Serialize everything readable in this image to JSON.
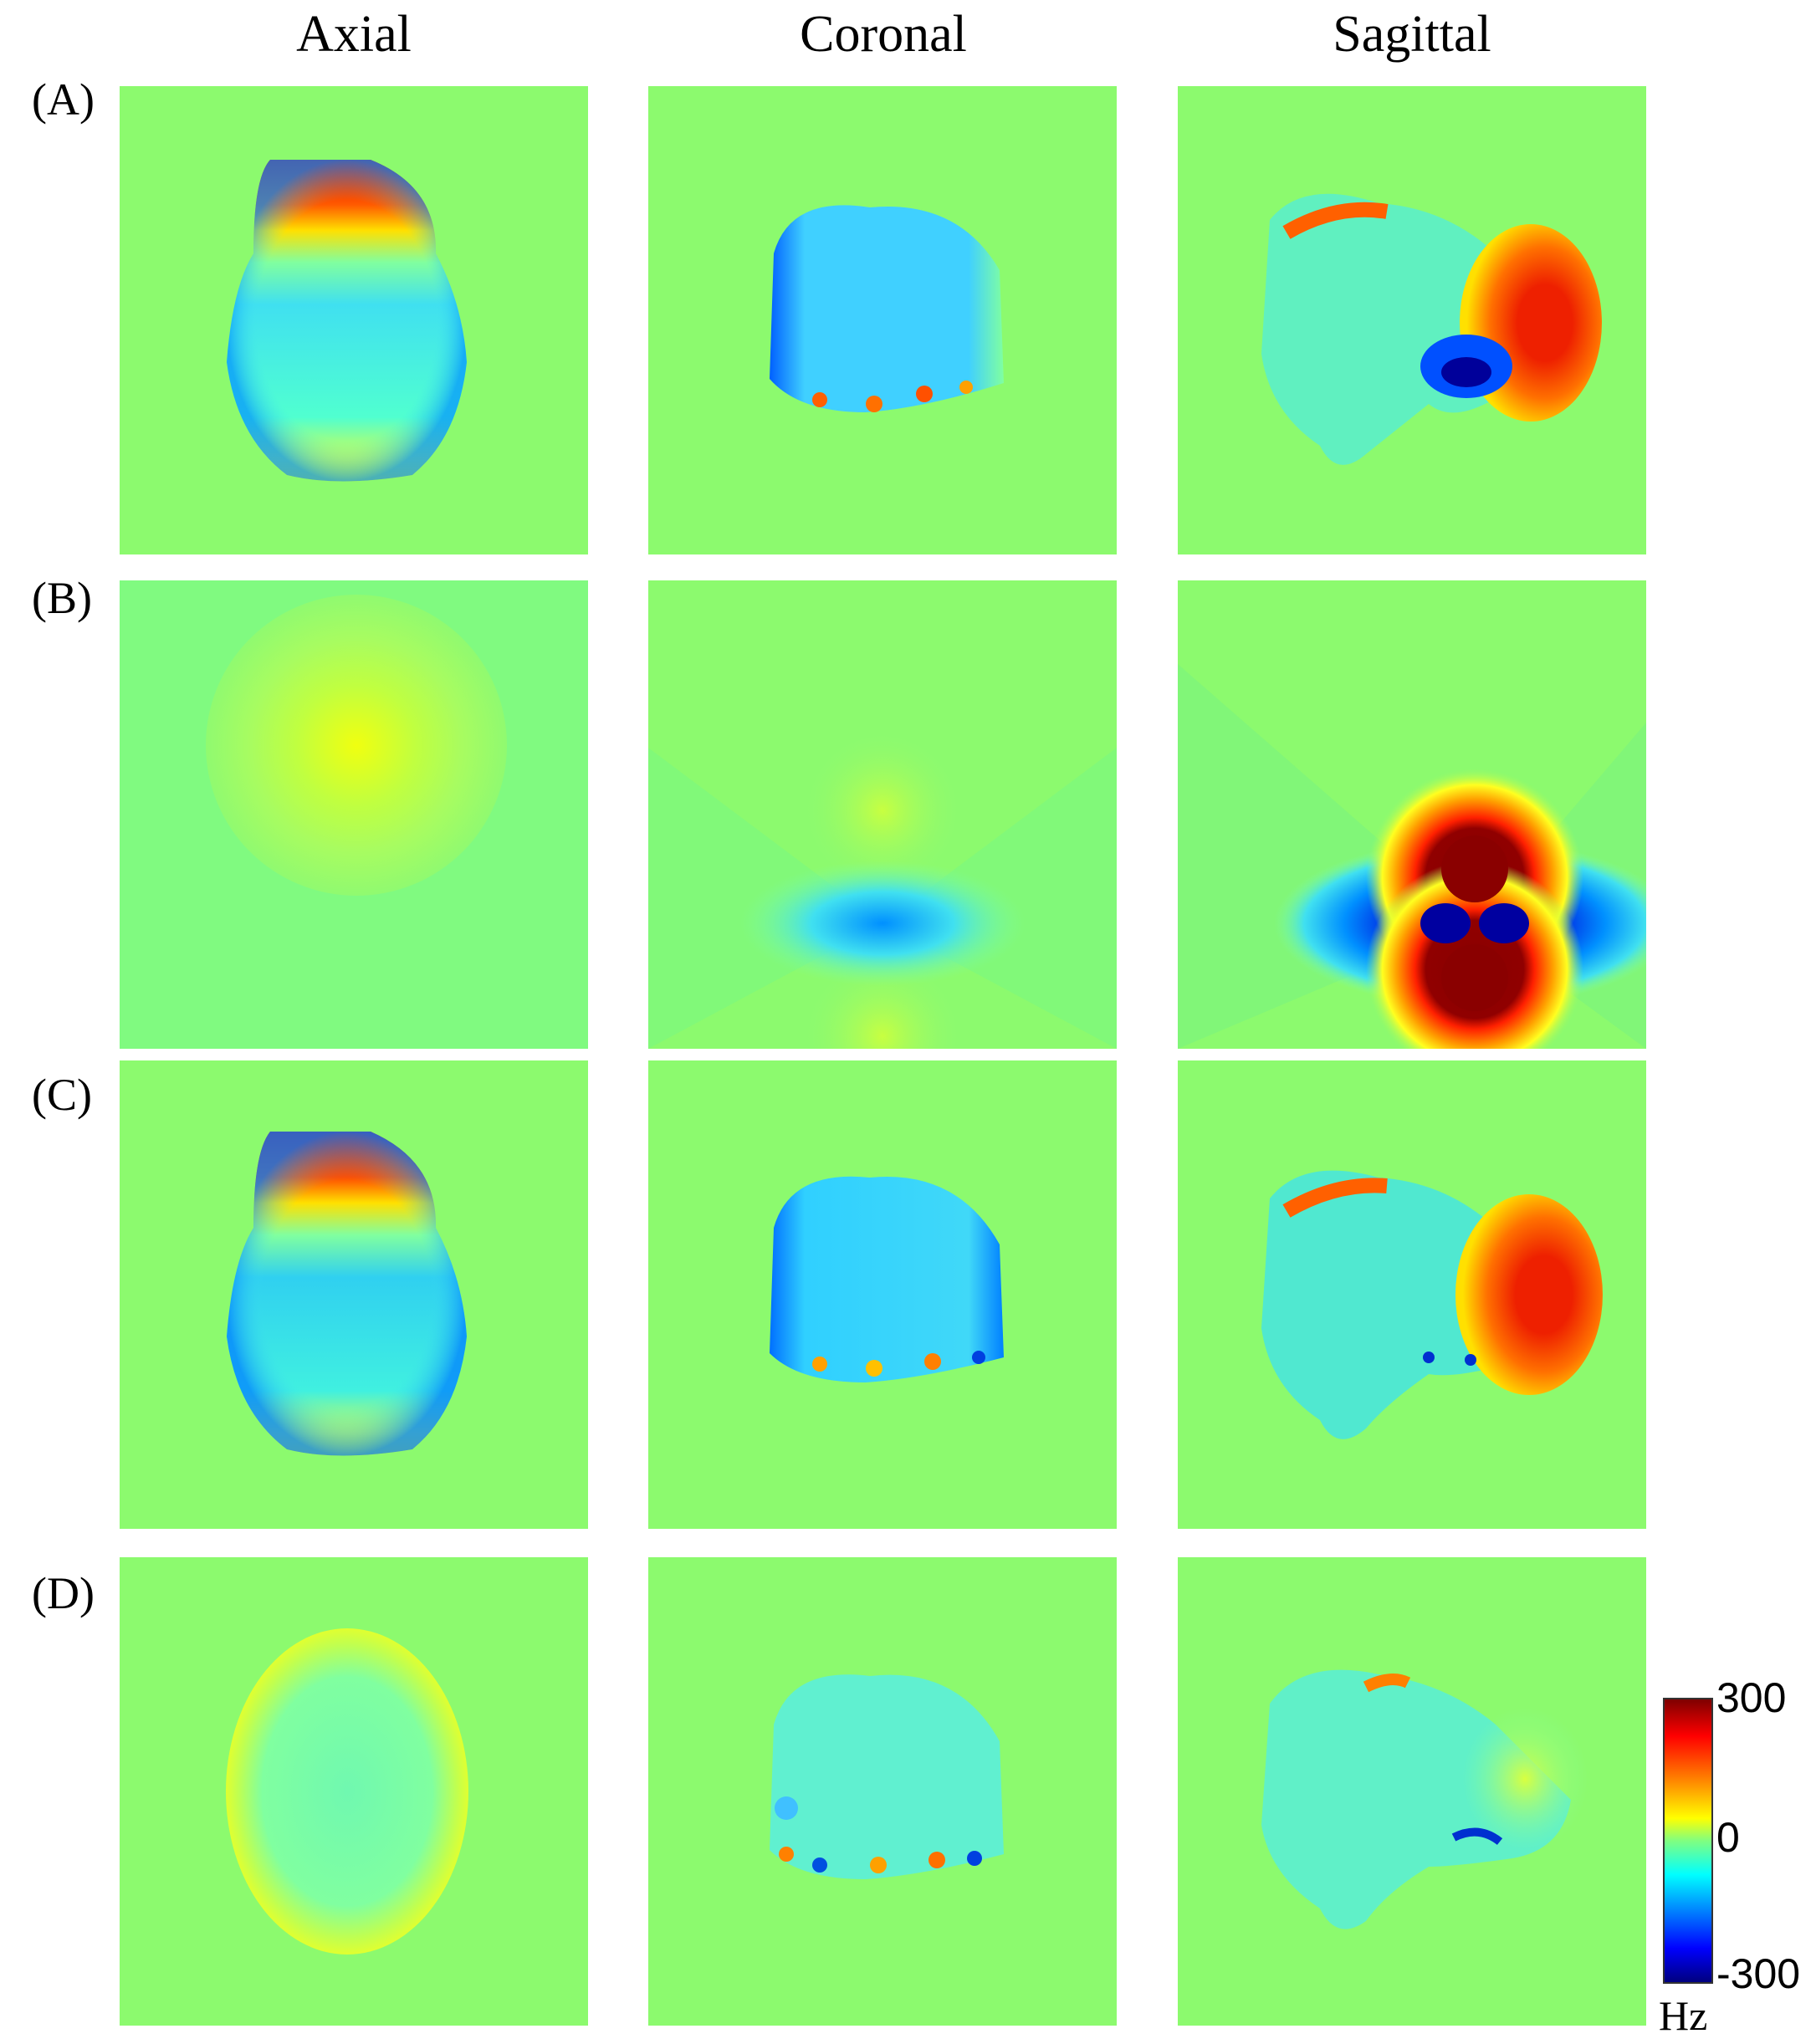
{
  "columns": [
    "Axial",
    "Coronal",
    "Sagittal"
  ],
  "rows": [
    "(A)",
    "(B)",
    "(C)",
    "(D)"
  ],
  "colorbar": {
    "max_label": "300",
    "mid_label": "0",
    "min_label": "-300",
    "unit": "Hz",
    "colormap": "jet"
  },
  "colors": {
    "background_field": "#8cfa6e",
    "max": "#7f0000",
    "zero": "#80ff80",
    "min": "#00007f"
  }
}
